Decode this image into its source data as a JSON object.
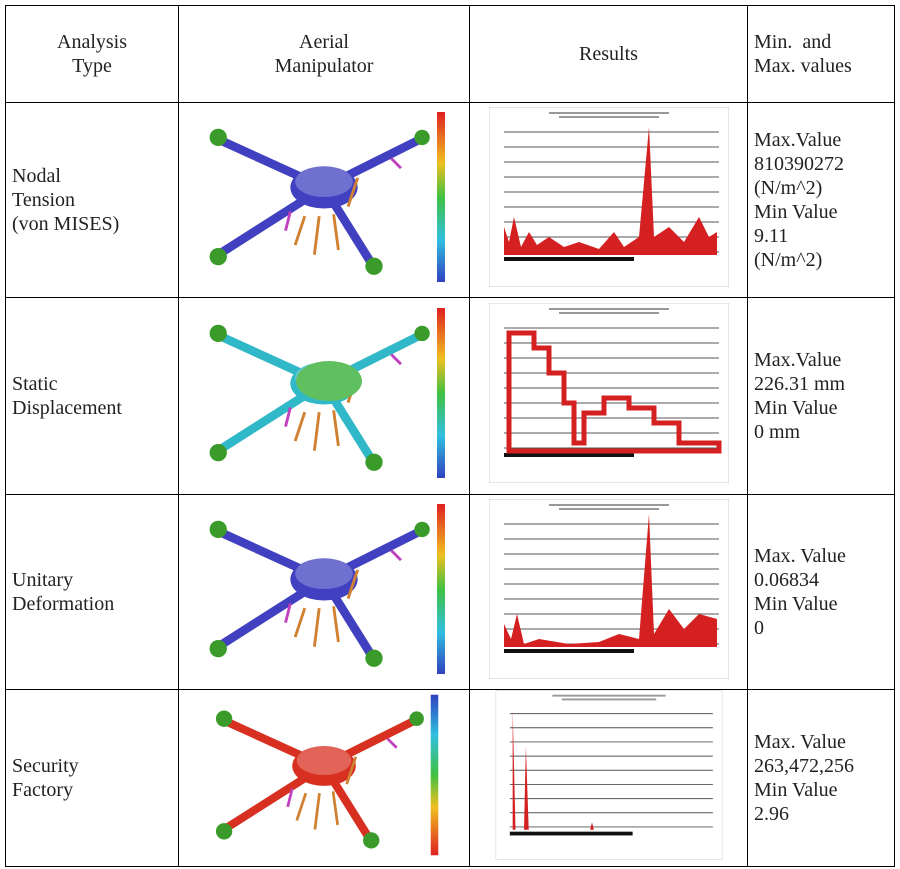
{
  "table": {
    "header": [
      [
        "Analysis",
        "Type"
      ],
      [
        "Aerial",
        "Manipulator"
      ],
      [
        "Results"
      ],
      [
        "Min.  and",
        "Max. values"
      ]
    ],
    "rows": [
      {
        "type": [
          "Nodal",
          "Tension",
          "(von MISES)"
        ],
        "values": [
          "Max.Value",
          "810390272",
          "(N/m^2)",
          "Min Value",
          "9.11",
          "(N/m^2)"
        ]
      },
      {
        "type": [
          "Static",
          "Displacement"
        ],
        "values": [
          "Max.Value",
          "226.31 mm",
          "Min Value",
          "0 mm"
        ]
      },
      {
        "type": [
          "Unitary",
          "Deformation"
        ],
        "values": [
          "Max. Value",
          "0.06834",
          "Min Value",
          "0"
        ]
      },
      {
        "type": [
          "Security",
          "Factory"
        ],
        "values": [
          "Max. Value",
          "263,472,256",
          "Min Value",
          "2.96"
        ]
      }
    ]
  }
}
